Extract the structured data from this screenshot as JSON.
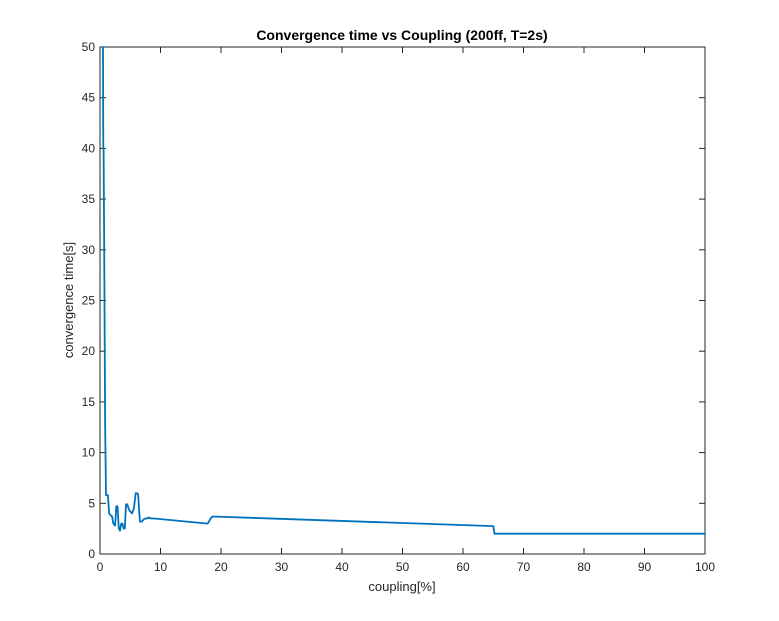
{
  "chart_data": {
    "type": "line",
    "title": "Convergence time vs Coupling (200ff, T=2s)",
    "xlabel": "coupling[%]",
    "ylabel": "convergence time[s]",
    "xlim": [
      0,
      100
    ],
    "ylim": [
      0,
      50
    ],
    "xticks": [
      0,
      10,
      20,
      30,
      40,
      50,
      60,
      70,
      80,
      90,
      100
    ],
    "yticks": [
      0,
      5,
      10,
      15,
      20,
      25,
      30,
      35,
      40,
      45,
      50
    ],
    "grid": false,
    "series": [
      {
        "name": "",
        "color": "#0072bd",
        "x": [
          0.45,
          0.5,
          0.55,
          0.6,
          0.65,
          0.75,
          0.85,
          1.0,
          1.1,
          1.3,
          1.5,
          1.8,
          2.0,
          2.2,
          2.5,
          2.7,
          2.9,
          3.1,
          3.3,
          3.5,
          3.7,
          3.9,
          4.1,
          4.3,
          4.5,
          4.8,
          5.0,
          5.3,
          5.6,
          5.9,
          6.1,
          6.3,
          6.6,
          6.9,
          7.2,
          7.5,
          7.8,
          8.0,
          8.5,
          9.0,
          17.8,
          18.3,
          18.6,
          65.0,
          65.2,
          66.0,
          80.0,
          100.0
        ],
        "y": [
          50,
          50,
          40,
          40,
          35,
          25,
          13,
          5.8,
          5.8,
          5.8,
          4.0,
          3.8,
          3.7,
          3.0,
          2.8,
          4.7,
          4.7,
          2.5,
          2.3,
          3.0,
          3.0,
          2.5,
          2.5,
          4.9,
          4.9,
          4.4,
          4.2,
          4.0,
          4.5,
          6.0,
          6.0,
          5.9,
          3.2,
          3.2,
          3.4,
          3.5,
          3.5,
          3.6,
          3.5,
          3.5,
          3.0,
          3.5,
          3.7,
          2.75,
          2.0,
          2.0,
          2.0,
          2.0
        ]
      }
    ]
  }
}
